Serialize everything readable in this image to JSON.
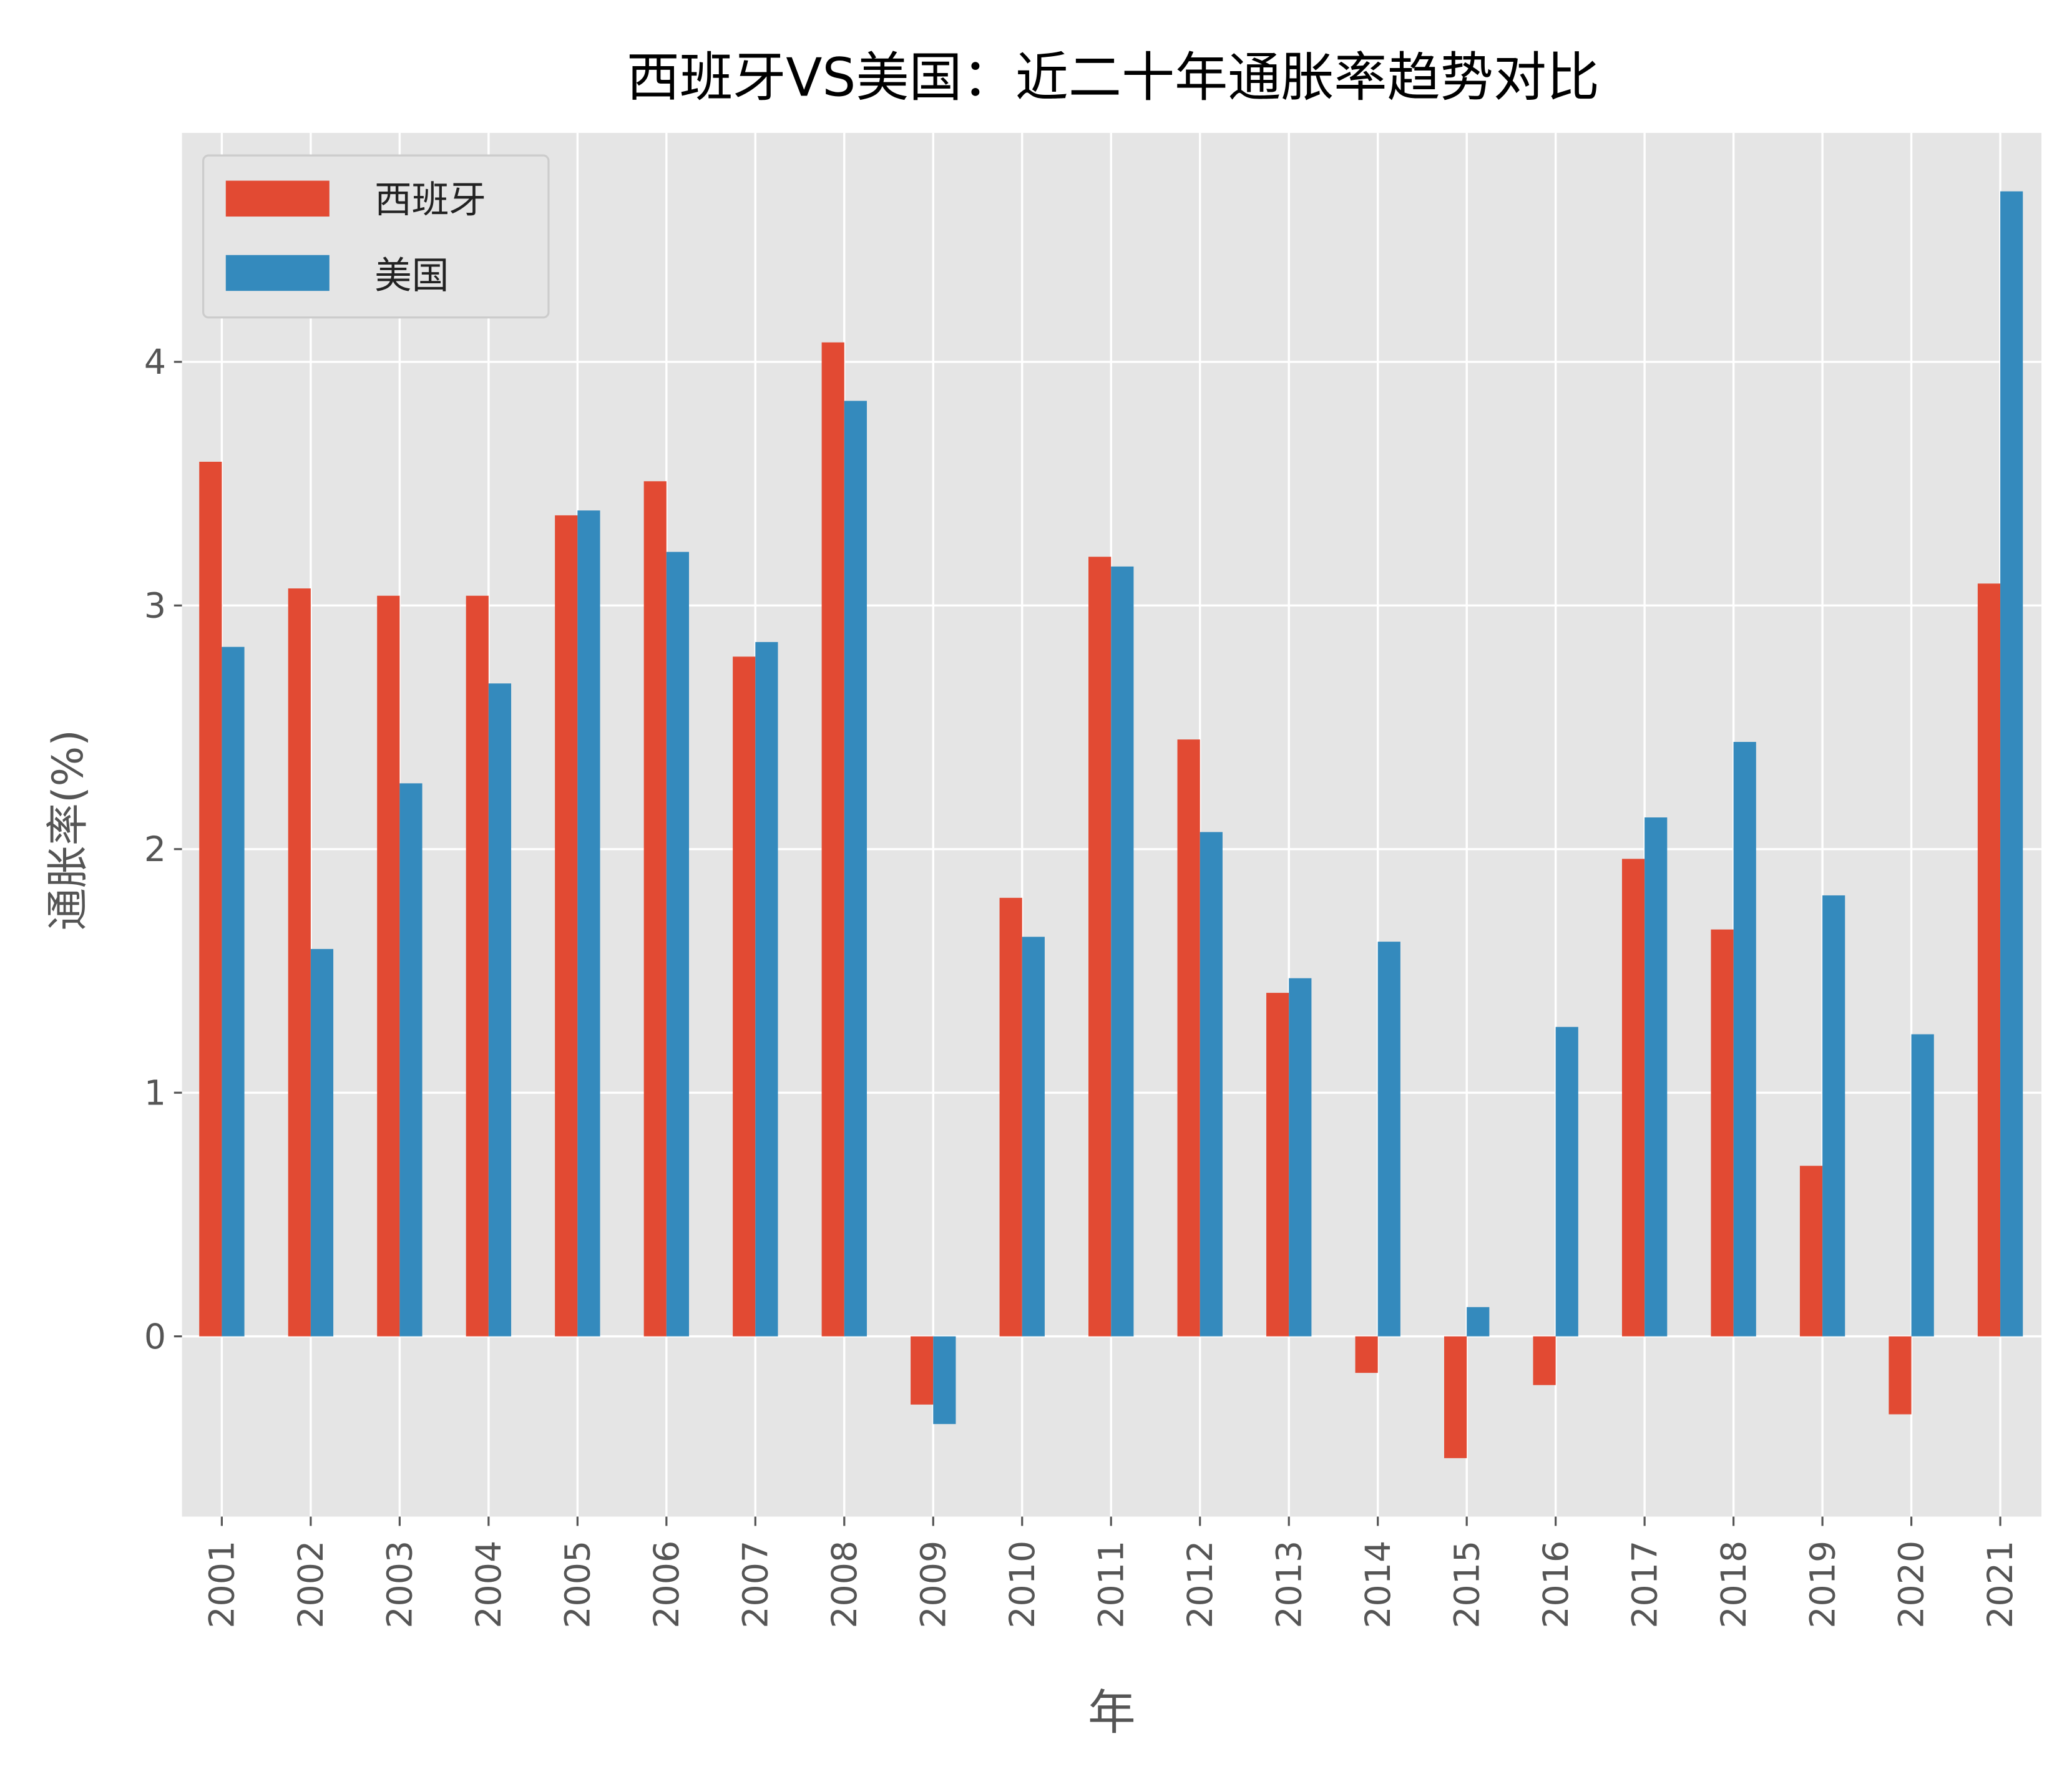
{
  "chart_data": {
    "type": "bar",
    "title": "西班牙VS美国：近二十年通胀率趋势对比",
    "xlabel": "年",
    "ylabel": "通胀率(%)",
    "ylim": [
      -0.74,
      4.94
    ],
    "yticks": [
      0,
      1,
      2,
      3,
      4
    ],
    "grid": true,
    "legend_position": "top-left",
    "background": "#e5e5e5",
    "categories": [
      "2001",
      "2002",
      "2003",
      "2004",
      "2005",
      "2006",
      "2007",
      "2008",
      "2009",
      "2010",
      "2011",
      "2012",
      "2013",
      "2014",
      "2015",
      "2016",
      "2017",
      "2018",
      "2019",
      "2020",
      "2021"
    ],
    "series": [
      {
        "name": "西班牙",
        "color": "#e24a33",
        "values": [
          3.59,
          3.07,
          3.04,
          3.04,
          3.37,
          3.51,
          2.79,
          4.08,
          -0.28,
          1.8,
          3.2,
          2.45,
          1.41,
          -0.15,
          -0.5,
          -0.2,
          1.96,
          1.67,
          0.7,
          -0.32,
          3.09
        ]
      },
      {
        "name": "美国",
        "color": "#348abd",
        "values": [
          2.83,
          1.59,
          2.27,
          2.68,
          3.39,
          3.22,
          2.85,
          3.84,
          -0.36,
          1.64,
          3.16,
          2.07,
          1.47,
          1.62,
          0.12,
          1.27,
          2.13,
          2.44,
          1.81,
          1.24,
          4.7
        ]
      }
    ]
  }
}
